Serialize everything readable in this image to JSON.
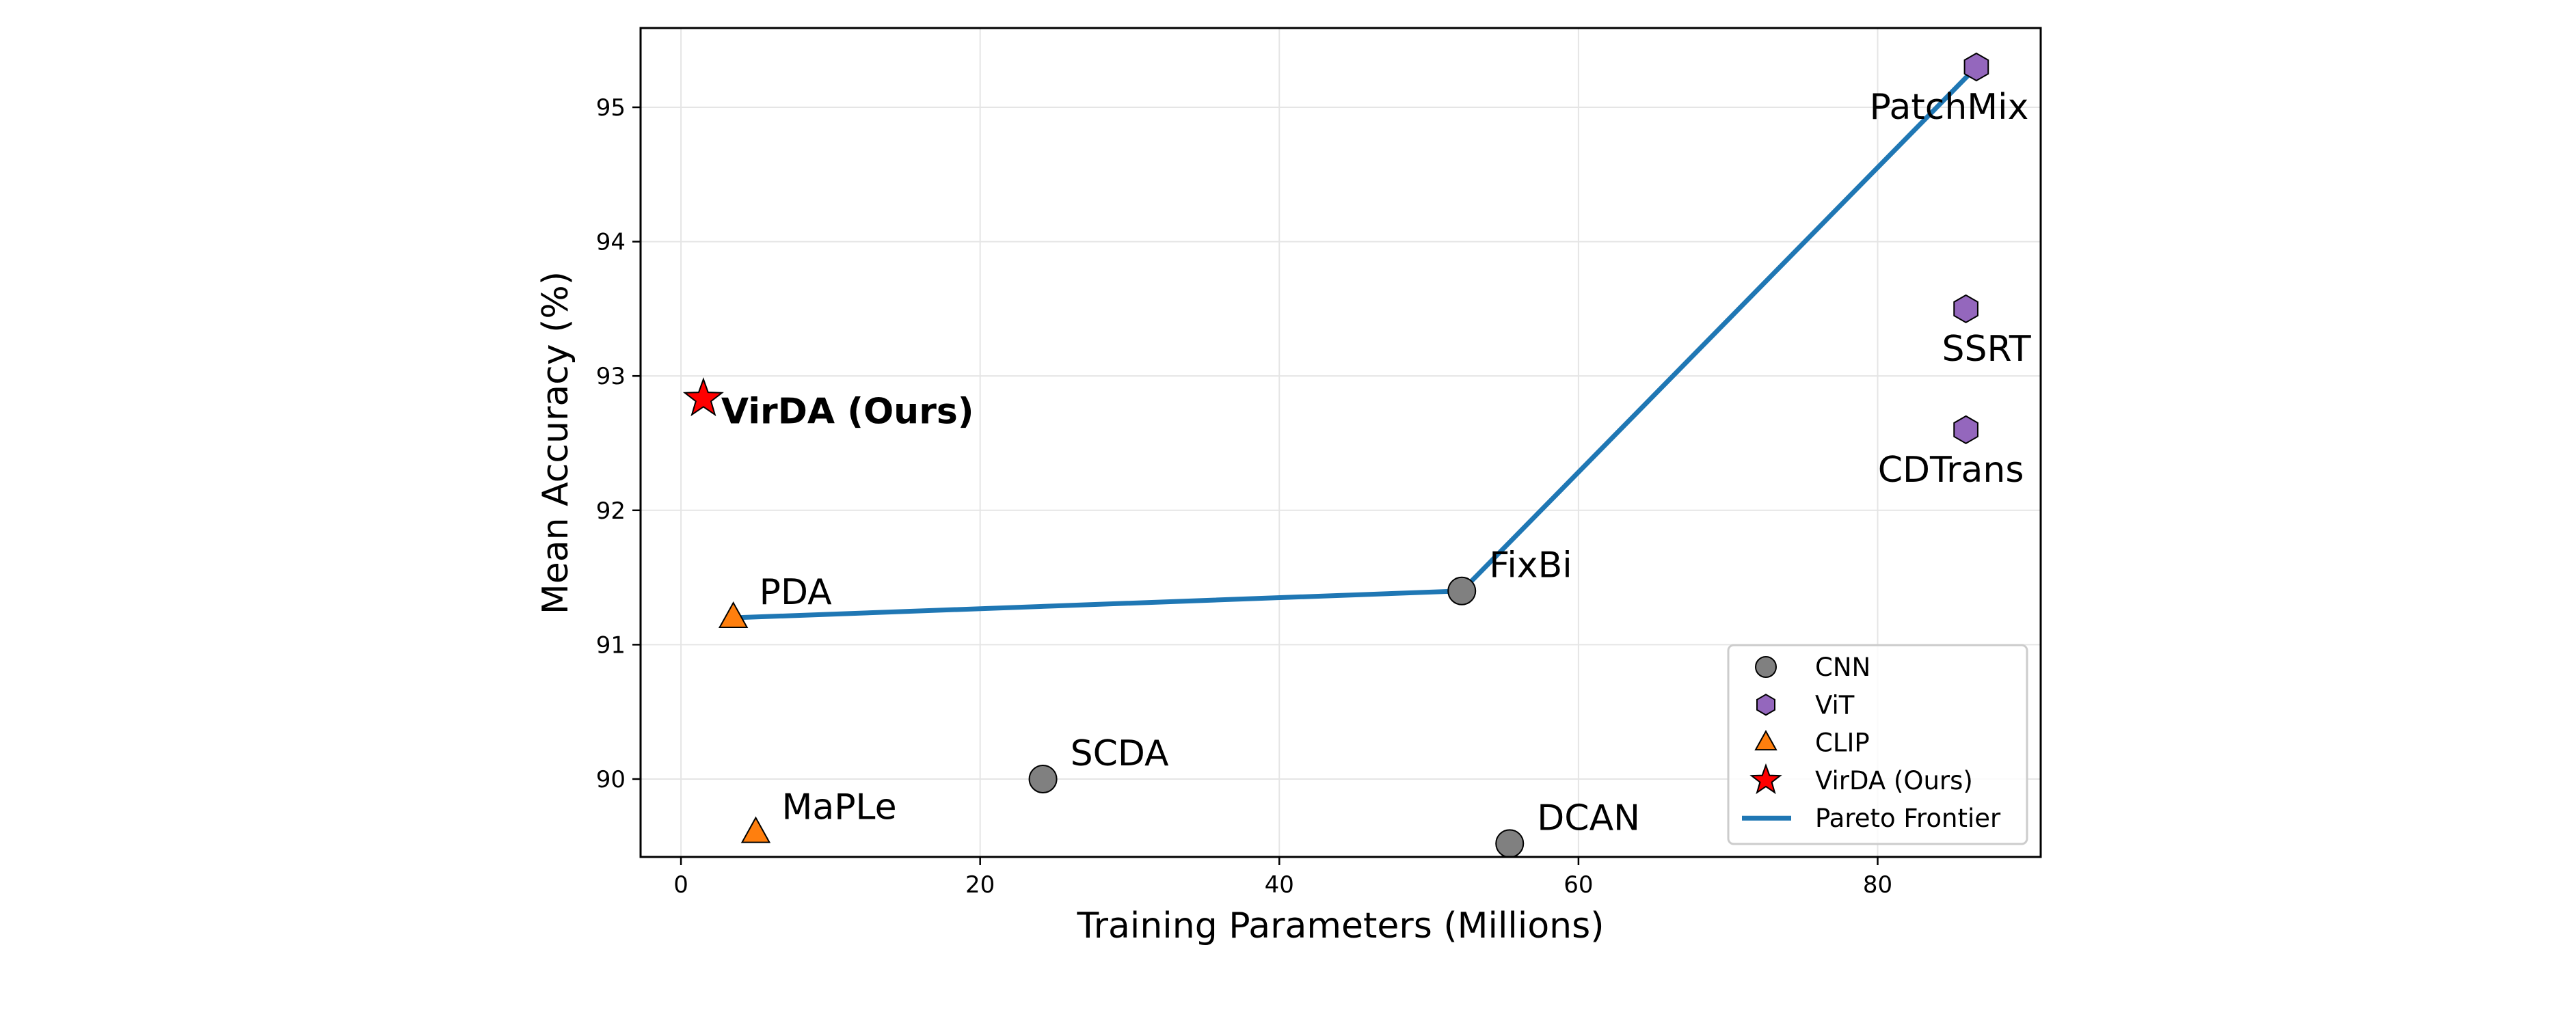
{
  "chart_data": {
    "type": "scatter",
    "xlabel": "Training Parameters (Millions)",
    "ylabel": "Mean Accuracy (%)",
    "xlim": [
      -2.7,
      90.9
    ],
    "ylim": [
      89.42,
      95.59
    ],
    "xticks": [
      0,
      20,
      40,
      60,
      80
    ],
    "yticks": [
      90,
      91,
      92,
      93,
      94,
      95
    ],
    "grid": true,
    "legend_position": "lower-right",
    "colors": {
      "CNN": "#808080",
      "ViT": "#9467bd",
      "CLIP": "#ff7f0e",
      "VirDA (Ours)": "#ff0000",
      "Pareto Frontier": "#1f77b4"
    },
    "points": [
      {
        "label": "VirDA (Ours)",
        "group": "VirDA (Ours)",
        "x": 1.5,
        "y": 92.83,
        "bold": true
      },
      {
        "label": "PDA",
        "group": "CLIP",
        "x": 3.5,
        "y": 91.2
      },
      {
        "label": "MaPLe",
        "group": "CLIP",
        "x": 5.0,
        "y": 89.6
      },
      {
        "label": "SCDA",
        "group": "CNN",
        "x": 24.2,
        "y": 90.0
      },
      {
        "label": "FixBi",
        "group": "CNN",
        "x": 52.2,
        "y": 91.4
      },
      {
        "label": "DCAN",
        "group": "CNN",
        "x": 55.4,
        "y": 89.52
      },
      {
        "label": "PatchMix",
        "group": "ViT",
        "x": 86.6,
        "y": 95.3
      },
      {
        "label": "SSRT",
        "group": "ViT",
        "x": 85.9,
        "y": 93.5
      },
      {
        "label": "CDTrans",
        "group": "ViT",
        "x": 85.9,
        "y": 92.6
      }
    ],
    "pareto_frontier": {
      "name": "Pareto Frontier",
      "x": [
        3.5,
        52.2,
        86.6
      ],
      "y": [
        91.2,
        91.4,
        95.3
      ]
    },
    "legend": [
      {
        "name": "CNN",
        "marker": "circle"
      },
      {
        "name": "ViT",
        "marker": "hexagon"
      },
      {
        "name": "CLIP",
        "marker": "triangle"
      },
      {
        "name": "VirDA (Ours)",
        "marker": "star"
      },
      {
        "name": "Pareto Frontier",
        "marker": "line"
      }
    ]
  }
}
